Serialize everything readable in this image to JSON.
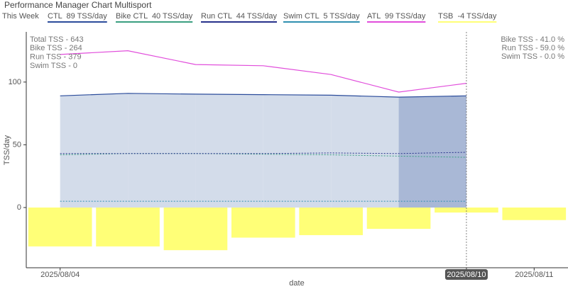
{
  "chart_data": {
    "type": "line",
    "title": "Performance Manager Chart Multisport",
    "legend_title": "This Week",
    "x_label": "date",
    "y_label": "TSS/day",
    "categories": [
      "2025/08/04",
      null,
      null,
      null,
      null,
      null,
      "2025/08/10",
      "2025/08/11"
    ],
    "ylim": [
      -48,
      140
    ],
    "yticks": [
      0,
      50,
      100
    ],
    "series": [
      {
        "name": "CTL  89 TSS/day",
        "type": "area",
        "color": "#2b4c9b",
        "fill": "#d3dcea",
        "values": [
          89,
          91,
          90.4,
          90,
          89.5,
          88,
          89,
          null
        ]
      },
      {
        "name": "Bike CTL  40 TSS/day",
        "type": "line",
        "dash": true,
        "color": "#3a9e80",
        "values": [
          42,
          43,
          43,
          42.5,
          42,
          41,
          40,
          null
        ]
      },
      {
        "name": "Run CTL  44 TSS/day",
        "type": "line",
        "dash": true,
        "color": "#27318a",
        "values": [
          43,
          43,
          43,
          43,
          43.5,
          43,
          44,
          null
        ]
      },
      {
        "name": "Swim CTL  5 TSS/day",
        "type": "line",
        "dash": true,
        "color": "#2f8fb0",
        "values": [
          5,
          5,
          5,
          5,
          5,
          5,
          5,
          null
        ]
      },
      {
        "name": "ATL  99 TSS/day",
        "type": "line",
        "color": "#e14ddb",
        "values": [
          122,
          125,
          114,
          113,
          106,
          92,
          99,
          null
        ]
      },
      {
        "name": "TSB  -4 TSS/day",
        "type": "bar",
        "color": "#ffff77",
        "values": [
          -31,
          -31,
          -34,
          -24,
          -22,
          -17,
          -4,
          -10
        ]
      }
    ],
    "annotations_left": [
      "Total TSS - 643",
      "Bike TSS - 264",
      "Run TSS - 379",
      "Swim TSS - 0"
    ],
    "annotations_right": [
      "Bike TSS - 41.0 %",
      "Run TSS - 59.0 %",
      "Swim TSS - 0.0 %"
    ]
  }
}
